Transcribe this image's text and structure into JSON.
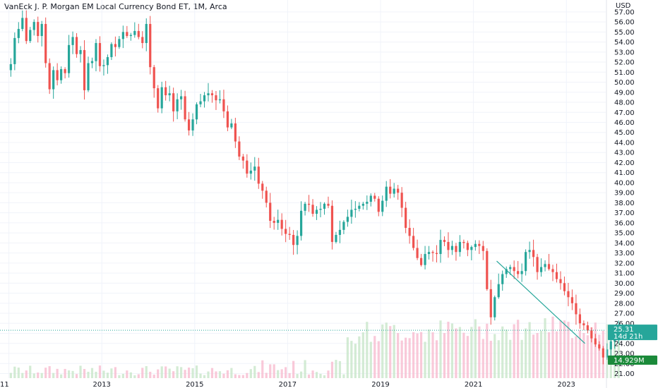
{
  "chart_data": {
    "type": "candlestick",
    "title": "VanEck J. P. Morgan EM Local Currency Bond ET, 1M, Arca",
    "currency": "USD",
    "y_ticks": [
      "21.00",
      "22.00",
      "23.00",
      "24.00",
      "25.00",
      "26.00",
      "27.00",
      "28.00",
      "29.00",
      "30.00",
      "31.00",
      "32.00",
      "33.00",
      "34.00",
      "35.00",
      "36.00",
      "37.00",
      "38.00",
      "39.00",
      "40.00",
      "41.00",
      "42.00",
      "43.00",
      "44.00",
      "45.00",
      "46.00",
      "47.00",
      "48.00",
      "49.00",
      "50.00",
      "51.00",
      "52.00",
      "53.00",
      "54.00",
      "55.00",
      "56.00",
      "57.00"
    ],
    "x_ticks": [
      {
        "label": "11",
        "year": 2011
      },
      {
        "label": "2013",
        "year": 2013
      },
      {
        "label": "2015",
        "year": 2015
      },
      {
        "label": "2017",
        "year": 2017
      },
      {
        "label": "2019",
        "year": 2019
      },
      {
        "label": "2021",
        "year": 2021
      },
      {
        "label": "2023",
        "year": 2023
      }
    ],
    "ylim": [
      20.2,
      57.8
    ],
    "xlim": [
      2011.0,
      2023.4
    ],
    "last_price": {
      "value": 25.31,
      "label": "25.31",
      "countdown": "14d 21h"
    },
    "last_volume": {
      "label": "14.929M"
    },
    "grid": true,
    "colors": {
      "up": "#26a69a",
      "down": "#ef5350",
      "trend": "#26a69a",
      "volume_up": "#c8e6c9",
      "volume_down": "#f8bbd0",
      "grid": "#f0f3fa"
    },
    "trendline": [
      {
        "x": 2021.5,
        "y": 32.2
      },
      {
        "x": 2023.4,
        "y": 24.0
      }
    ],
    "closes": [
      51.8,
      54.4,
      55.3,
      56.4,
      54.1,
      55.2,
      56.0,
      54.6,
      55.8,
      51.9,
      49.3,
      51.2,
      50.2,
      51.3,
      50.9,
      53.7,
      54.5,
      52.8,
      53.2,
      49.2,
      51.9,
      52.1,
      53.9,
      51.6,
      51.7,
      52.5,
      53.8,
      53.5,
      54.3,
      55.0,
      54.6,
      54.7,
      55.1,
      54.5,
      53.9,
      55.8,
      51.5,
      49.4,
      47.4,
      49.5,
      48.7,
      48.9,
      47.1,
      48.3,
      48.6,
      46.3,
      45.2,
      46.3,
      47.8,
      48.1,
      48.7,
      48.9,
      48.7,
      48.2,
      48.3,
      47.1,
      45.5,
      45.9,
      44.1,
      42.6,
      42.2,
      40.9,
      41.2,
      41.6,
      39.9,
      39.2,
      38.0,
      36.2,
      36.0,
      36.3,
      35.4,
      34.9,
      34.8,
      33.8,
      34.7,
      37.2,
      37.9,
      37.8,
      36.9,
      37.3,
      37.4,
      37.9,
      37.7,
      34.1,
      34.8,
      35.3,
      36.1,
      36.6,
      37.3,
      37.4,
      37.7,
      37.9,
      38.1,
      38.7,
      38.4,
      37.1,
      38.2,
      39.6,
      38.9,
      39.4,
      39.0,
      37.5,
      35.5,
      34.7,
      33.5,
      32.5,
      31.8,
      32.9,
      33.1,
      33.0,
      32.9,
      34.3,
      34.1,
      33.3,
      33.7,
      33.1,
      34.1,
      34.0,
      33.3,
      33.6,
      33.9,
      33.7,
      33.2,
      29.4,
      26.6,
      28.6,
      29.9,
      30.9,
      31.4,
      31.6,
      31.2,
      30.9,
      31.2,
      33.1,
      33.3,
      32.6,
      31.1,
      31.6,
      31.9,
      31.4,
      31.1,
      30.4,
      30.0,
      29.2,
      28.6,
      28.0,
      26.9,
      26.0,
      25.8,
      25.3,
      24.5,
      23.9,
      23.5,
      22.6,
      23.4,
      24.2,
      24.6,
      25.31
    ]
  }
}
